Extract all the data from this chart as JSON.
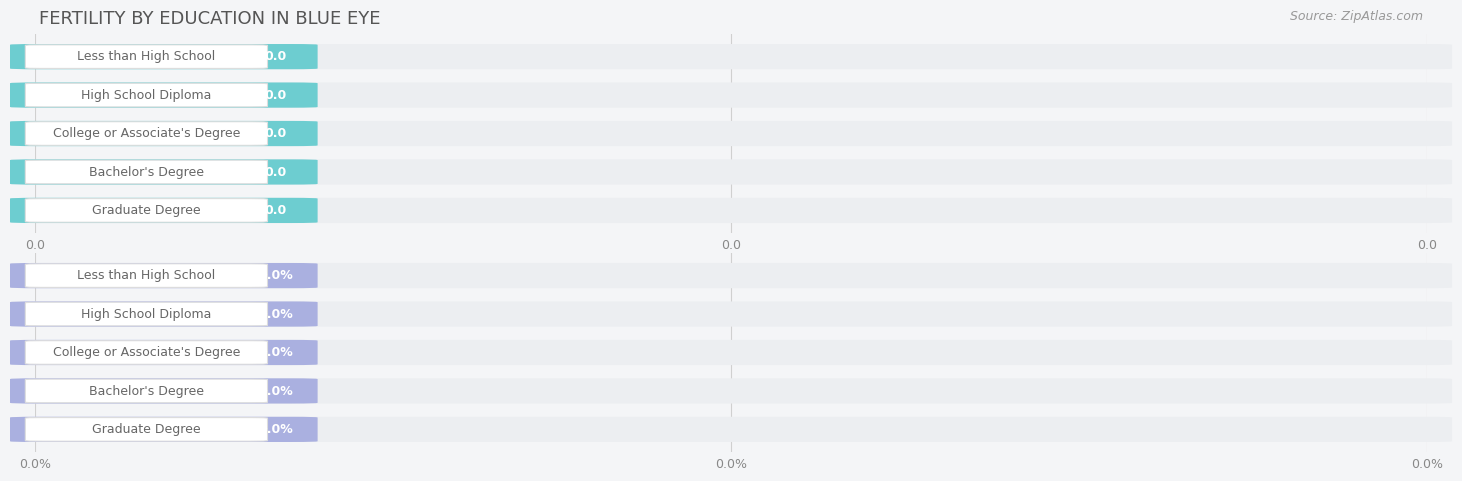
{
  "title": "FERTILITY BY EDUCATION IN BLUE EYE",
  "source": "Source: ZipAtlas.com",
  "categories": [
    "Less than High School",
    "High School Diploma",
    "College or Associate's Degree",
    "Bachelor's Degree",
    "Graduate Degree"
  ],
  "values_top": [
    0.0,
    0.0,
    0.0,
    0.0,
    0.0
  ],
  "values_bottom": [
    0.0,
    0.0,
    0.0,
    0.0,
    0.0
  ],
  "bar_color_top": "#6dcdd0",
  "bar_color_bottom": "#aab0e0",
  "bar_bg_color": "#eceef1",
  "fig_bg_color": "#f4f5f7",
  "text_label_color": "#666666",
  "value_color": "#ffffff",
  "title_color": "#555555",
  "source_color": "#999999",
  "grid_color": "#d0d0d0",
  "xtick_labels_top": [
    "0.0",
    "0.0",
    "0.0"
  ],
  "xtick_labels_bottom": [
    "0.0%",
    "0.0%",
    "0.0%"
  ],
  "title_fontsize": 13,
  "bar_label_fontsize": 9,
  "tick_fontsize": 9,
  "source_fontsize": 9
}
